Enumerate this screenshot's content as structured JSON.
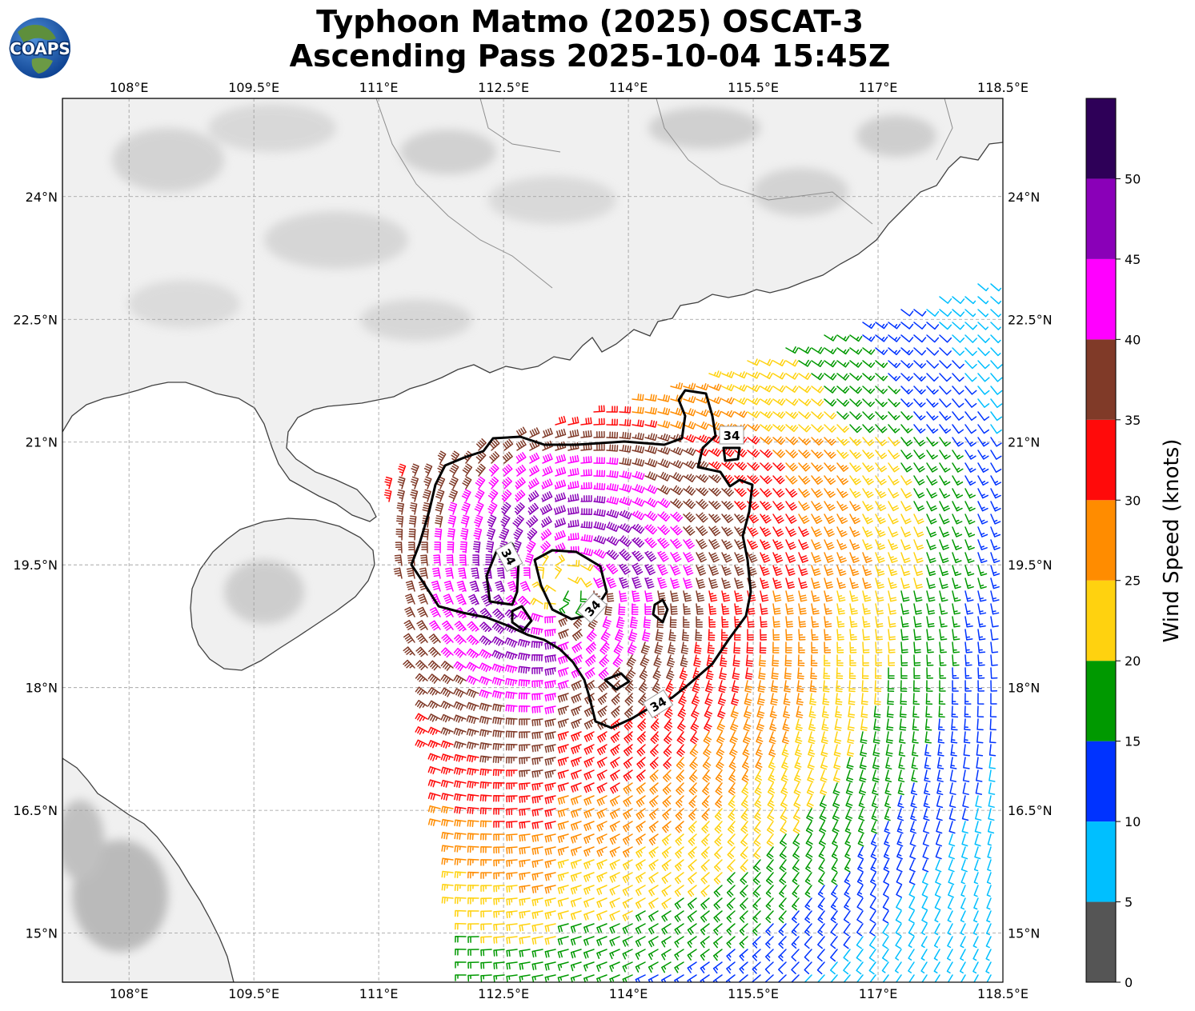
{
  "title": {
    "line1": "Typhoon Matmo (2025) OSCAT-3",
    "line2": "Ascending Pass 2025-10-04 15:45Z"
  },
  "logo": {
    "text": "COAPS"
  },
  "map": {
    "lon_range": [
      107.2,
      118.5
    ],
    "lat_range": [
      14.4,
      25.2
    ],
    "lon_ticks": [
      "108°E",
      "109.5°E",
      "111°E",
      "112.5°E",
      "114°E",
      "115.5°E",
      "117°E",
      "118.5°E"
    ],
    "lon_tick_values": [
      108,
      109.5,
      111,
      112.5,
      114,
      115.5,
      117,
      118.5
    ],
    "lat_ticks": [
      "24°N",
      "22.5°N",
      "21°N",
      "19.5°N",
      "18°N",
      "16.5°N",
      "15°N"
    ],
    "lat_tick_values": [
      24,
      22.5,
      21,
      19.5,
      18,
      16.5,
      15
    ],
    "storm_center": {
      "lon": 113.2,
      "lat": 19.25
    },
    "contour_level_label": "34",
    "contour_labels": [
      "34",
      "34",
      "34",
      "34"
    ]
  },
  "colorbar": {
    "label": "Wind Speed (knots)",
    "tick_labels": [
      "0",
      "5",
      "10",
      "15",
      "20",
      "25",
      "30",
      "35",
      "40",
      "45",
      "50"
    ],
    "bins": [
      {
        "min": 0,
        "max": 5,
        "color": "#555555"
      },
      {
        "min": 5,
        "max": 10,
        "color": "#00bfff"
      },
      {
        "min": 10,
        "max": 15,
        "color": "#0033ff"
      },
      {
        "min": 15,
        "max": 20,
        "color": "#009900"
      },
      {
        "min": 20,
        "max": 25,
        "color": "#ffd20f"
      },
      {
        "min": 25,
        "max": 30,
        "color": "#ff8c00"
      },
      {
        "min": 30,
        "max": 35,
        "color": "#ff0a0a"
      },
      {
        "min": 35,
        "max": 40,
        "color": "#803a28"
      },
      {
        "min": 40,
        "max": 45,
        "color": "#ff00ff"
      },
      {
        "min": 45,
        "max": 50,
        "color": "#8a00b8"
      },
      {
        "min": 50,
        "max": 55,
        "color": "#2e0058"
      }
    ]
  },
  "colors": {
    "land": "#f1f1f1",
    "terrain": "#b9b9b9",
    "coast": "#404040",
    "grid": "#9a9a9a",
    "contour": "#000000"
  }
}
